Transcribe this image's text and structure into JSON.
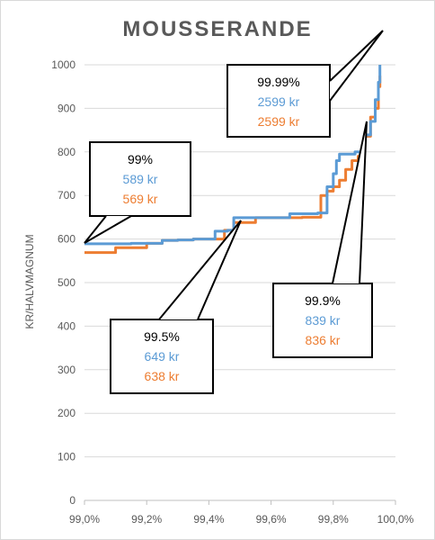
{
  "colors": {
    "series1": "#5b9bd5",
    "series2": "#ed7d31",
    "grid": "#d9d9d9",
    "text": "#595959",
    "callout_text": "#000000"
  },
  "chart_data": {
    "type": "line",
    "title": "MOUSSERANDE",
    "xlabel": "",
    "ylabel": "KR/HALVMAGNUM",
    "xlim": [
      99.0,
      100.0
    ],
    "ylim": [
      0,
      1000
    ],
    "x_ticks": [
      "99,0%",
      "99,2%",
      "99,4%",
      "99,6%",
      "99,8%",
      "100,0%"
    ],
    "y_ticks": [
      "0",
      "100",
      "200",
      "300",
      "400",
      "500",
      "600",
      "700",
      "800",
      "900",
      "1000"
    ],
    "grid": "horizontal",
    "legend": "none",
    "series": [
      {
        "color": "#5b9bd5",
        "x": [
          99.0,
          99.05,
          99.1,
          99.15,
          99.2,
          99.25,
          99.3,
          99.35,
          99.4,
          99.42,
          99.44,
          99.46,
          99.48,
          99.5,
          99.55,
          99.6,
          99.66,
          99.7,
          99.75,
          99.78,
          99.8,
          99.81,
          99.82,
          99.85,
          99.87,
          99.88,
          99.9,
          99.92,
          99.935,
          99.945,
          99.95
        ],
        "y": [
          589,
          589,
          589,
          590,
          590,
          597,
          598,
          600,
          600,
          618,
          618,
          620,
          649,
          649,
          649,
          649,
          658,
          658,
          660,
          720,
          750,
          780,
          795,
          795,
          800,
          800,
          839,
          870,
          920,
          960,
          1000
        ]
      },
      {
        "color": "#ed7d31",
        "x": [
          99.0,
          99.05,
          99.08,
          99.1,
          99.15,
          99.2,
          99.25,
          99.3,
          99.35,
          99.4,
          99.45,
          99.48,
          99.5,
          99.55,
          99.6,
          99.7,
          99.76,
          99.78,
          99.8,
          99.82,
          99.84,
          99.86,
          99.88,
          99.9,
          99.92,
          99.935,
          99.945,
          99.95
        ],
        "y": [
          569,
          569,
          569,
          580,
          580,
          590,
          597,
          598,
          600,
          600,
          620,
          638,
          638,
          649,
          649,
          650,
          700,
          710,
          720,
          735,
          760,
          780,
          790,
          836,
          880,
          900,
          950,
          975
        ]
      }
    ],
    "callouts": [
      {
        "title": "99%",
        "line1": "589 kr",
        "line2": "569 kr"
      },
      {
        "title": "99.99%",
        "line1": "2599 kr",
        "line2": "2599 kr"
      },
      {
        "title": "99.5%",
        "line1": "649 kr",
        "line2": "638 kr"
      },
      {
        "title": "99.9%",
        "line1": "839 kr",
        "line2": "836 kr"
      }
    ]
  }
}
